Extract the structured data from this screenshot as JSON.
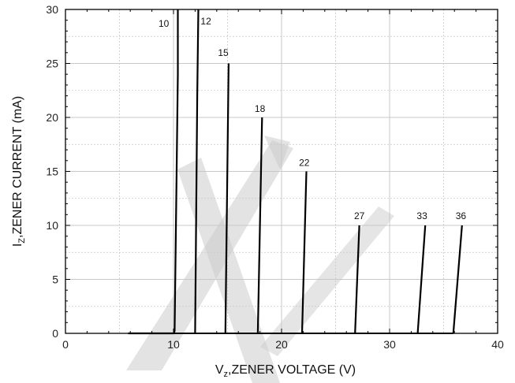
{
  "chart_data": {
    "type": "line",
    "xlabel_main": "V",
    "xlabel_sub": "z",
    "xlabel_rest": ",ZENER VOLTAGE (V)",
    "ylabel_main": "I",
    "ylabel_sub": "Z",
    "ylabel_rest": ",ZENER CURRENT (mA)",
    "xlim": [
      0,
      40
    ],
    "ylim": [
      0,
      30
    ],
    "x_ticks": [
      "0",
      "10",
      "20",
      "30",
      "40"
    ],
    "y_ticks": [
      "0",
      "5",
      "10",
      "15",
      "20",
      "25",
      "30"
    ],
    "grid": true,
    "series": [
      {
        "name": "10",
        "x": [
          5.8,
          10.0,
          10.1,
          10.4,
          10.4
        ],
        "y": [
          0,
          0,
          0.2,
          24,
          30
        ]
      },
      {
        "name": "12",
        "x": [
          12.0,
          12.2,
          12.3
        ],
        "y": [
          0,
          22,
          30
        ]
      },
      {
        "name": "15",
        "x": [
          14.8,
          15.1
        ],
        "y": [
          0,
          25
        ]
      },
      {
        "name": "18",
        "x": [
          17.8,
          18.2
        ],
        "y": [
          0,
          20
        ]
      },
      {
        "name": "22",
        "x": [
          21.9,
          22.3
        ],
        "y": [
          0,
          15
        ]
      },
      {
        "name": "27",
        "x": [
          26.8,
          27.2
        ],
        "y": [
          0,
          10
        ]
      },
      {
        "name": "33",
        "x": [
          32.6,
          33.3
        ],
        "y": [
          0,
          10
        ]
      },
      {
        "name": "36",
        "x": [
          35.9,
          36.7
        ],
        "y": [
          0,
          10
        ]
      }
    ],
    "curve_labels": [
      {
        "text": "10",
        "x": 9.1,
        "y": 28.4
      },
      {
        "text": "12",
        "x": 13.0,
        "y": 28.6
      },
      {
        "text": "15",
        "x": 14.6,
        "y": 25.7
      },
      {
        "text": "18",
        "x": 18.0,
        "y": 20.5
      },
      {
        "text": "22",
        "x": 22.1,
        "y": 15.5
      },
      {
        "text": "27",
        "x": 27.2,
        "y": 10.6
      },
      {
        "text": "33",
        "x": 33.0,
        "y": 10.6
      },
      {
        "text": "36",
        "x": 36.6,
        "y": 10.6
      }
    ],
    "watermark_color": "#cccccc",
    "curve_color": "#000000",
    "grid_color": "#c8c8c8"
  }
}
